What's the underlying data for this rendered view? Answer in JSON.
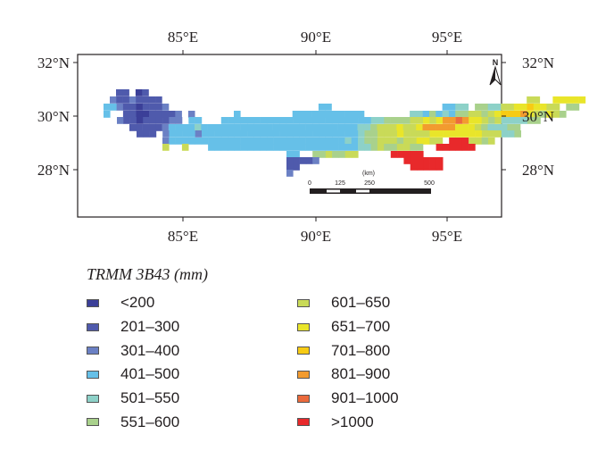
{
  "map": {
    "lon_labels": [
      "85°E",
      "90°E",
      "95°E"
    ],
    "lat_labels": [
      "32°N",
      "30°N",
      "28°N"
    ],
    "north_label": "N",
    "scale_bar": {
      "unit_label": "(km)",
      "tick_labels": [
        "0",
        "125",
        "250",
        "500"
      ]
    }
  },
  "legend": {
    "title": "TRMM 3B43 (mm)",
    "items": [
      {
        "label": "<200",
        "color": "#3b3f98"
      },
      {
        "label": "201–300",
        "color": "#4f5aac"
      },
      {
        "label": "301–400",
        "color": "#6b80c4"
      },
      {
        "label": "401–500",
        "color": "#66c0e8"
      },
      {
        "label": "501–550",
        "color": "#8dd1c8"
      },
      {
        "label": "551–600",
        "color": "#a9d18c"
      },
      {
        "label": "601–650",
        "color": "#c9da58"
      },
      {
        "label": "651–700",
        "color": "#e9e52a"
      },
      {
        "label": "701–800",
        "color": "#f7cb14"
      },
      {
        "label": "801–900",
        "color": "#f29b2f"
      },
      {
        "label": "901–1000",
        "color": "#eb6a3c"
      },
      {
        "label": ">1000",
        "color": "#e8292b"
      }
    ]
  }
}
